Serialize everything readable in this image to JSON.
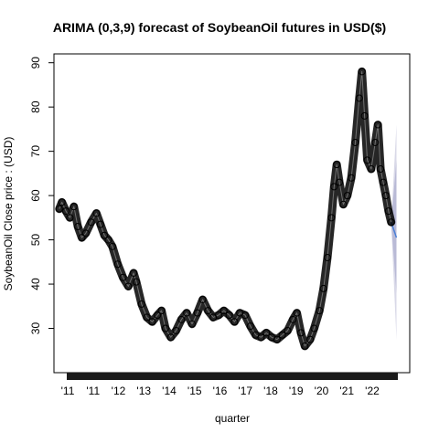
{
  "chart_data": {
    "type": "line",
    "title": "ARIMA (0,3,9) forecast of  SoybeanOil futures in USD($)",
    "xlabel": "quarter",
    "ylabel": "SoybeanOil Close price : (USD)",
    "x_ticks": [
      "'11",
      "'11",
      "'12",
      "'13",
      "'14",
      "'15",
      "'16",
      "'17",
      "'18",
      "'19",
      "'20",
      "'21",
      "'22"
    ],
    "y_ticks": [
      30,
      40,
      50,
      60,
      70,
      80,
      90
    ],
    "ylim": [
      20,
      92
    ],
    "grid": false,
    "colors": {
      "series": "#000000",
      "forecast_line": "#4a7fd6",
      "forecast_band_outer": "#d9d9e8",
      "forecast_band_inner": "#b9bad6"
    },
    "series": [
      {
        "values": [
          [
            2011.0,
            57.0
          ],
          [
            2011.1,
            58.5
          ],
          [
            2011.25,
            56.5
          ],
          [
            2011.4,
            55.0
          ],
          [
            2011.55,
            57.5
          ],
          [
            2011.7,
            53.0
          ],
          [
            2011.85,
            50.5
          ],
          [
            2012.0,
            51.5
          ],
          [
            2012.2,
            54.0
          ],
          [
            2012.4,
            56.0
          ],
          [
            2012.55,
            53.5
          ],
          [
            2012.7,
            51.0
          ],
          [
            2012.85,
            50.0
          ],
          [
            2013.0,
            48.5
          ],
          [
            2013.2,
            44.5
          ],
          [
            2013.4,
            41.5
          ],
          [
            2013.6,
            39.5
          ],
          [
            2013.8,
            42.5
          ],
          [
            2013.9,
            40.5
          ],
          [
            2014.1,
            35.5
          ],
          [
            2014.3,
            32.5
          ],
          [
            2014.5,
            31.5
          ],
          [
            2014.7,
            33.0
          ],
          [
            2014.85,
            34.0
          ],
          [
            2015.0,
            30.0
          ],
          [
            2015.2,
            28.0
          ],
          [
            2015.4,
            29.5
          ],
          [
            2015.6,
            32.0
          ],
          [
            2015.8,
            33.5
          ],
          [
            2016.0,
            31.0
          ],
          [
            2016.2,
            33.5
          ],
          [
            2016.4,
            36.5
          ],
          [
            2016.6,
            34.0
          ],
          [
            2016.8,
            32.5
          ],
          [
            2017.0,
            33.0
          ],
          [
            2017.2,
            34.0
          ],
          [
            2017.4,
            33.0
          ],
          [
            2017.6,
            31.5
          ],
          [
            2017.8,
            33.5
          ],
          [
            2018.0,
            33.0
          ],
          [
            2018.2,
            30.5
          ],
          [
            2018.4,
            28.5
          ],
          [
            2018.6,
            28.0
          ],
          [
            2018.8,
            29.0
          ],
          [
            2019.0,
            28.0
          ],
          [
            2019.2,
            27.5
          ],
          [
            2019.4,
            28.5
          ],
          [
            2019.6,
            29.5
          ],
          [
            2019.8,
            32.0
          ],
          [
            2019.95,
            33.5
          ],
          [
            2020.1,
            29.0
          ],
          [
            2020.25,
            26.0
          ],
          [
            2020.45,
            27.5
          ],
          [
            2020.6,
            30.0
          ],
          [
            2020.8,
            34.0
          ],
          [
            2020.95,
            39.0
          ],
          [
            2021.1,
            46.0
          ],
          [
            2021.25,
            55.0
          ],
          [
            2021.35,
            62.0
          ],
          [
            2021.45,
            67.0
          ],
          [
            2021.55,
            63.0
          ],
          [
            2021.7,
            58.0
          ],
          [
            2021.85,
            60.0
          ],
          [
            2022.0,
            64.0
          ],
          [
            2022.15,
            72.0
          ],
          [
            2022.3,
            82.0
          ],
          [
            2022.4,
            88.0
          ],
          [
            2022.5,
            78.0
          ],
          [
            2022.6,
            68.0
          ],
          [
            2022.75,
            66.0
          ],
          [
            2022.9,
            72.0
          ],
          [
            2023.0,
            76.0
          ],
          [
            2023.1,
            66.0
          ],
          [
            2023.2,
            63.0
          ],
          [
            2023.3,
            60.0
          ],
          [
            2023.4,
            56.5
          ],
          [
            2023.5,
            54.0
          ]
        ]
      }
    ],
    "forecast": {
      "x_start": 2023.5,
      "x_end": 2023.7,
      "mean_start": 54.0,
      "mean_end": 50.5,
      "band_outer_upper": [
        54.0,
        76.0
      ],
      "band_outer_lower": [
        54.0,
        27.5
      ],
      "band_inner_upper": [
        54.0,
        68.0
      ],
      "band_inner_lower": [
        54.0,
        38.0
      ]
    }
  }
}
